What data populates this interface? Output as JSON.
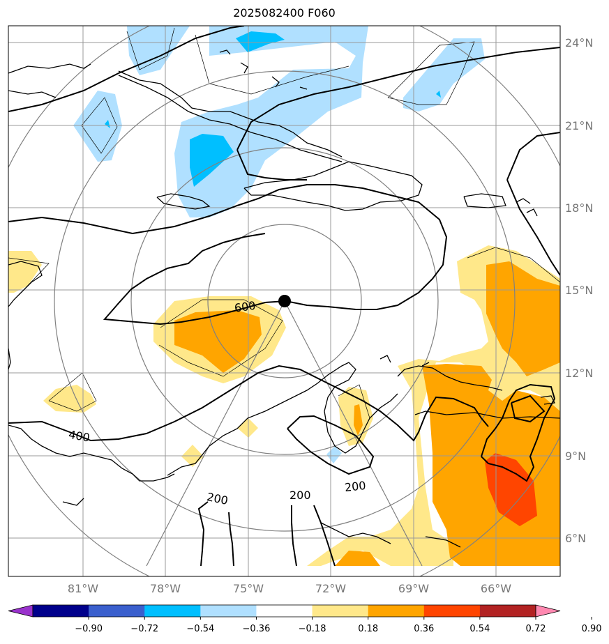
{
  "title": "2025082400 F060",
  "lat_labels": [
    "24°N",
    "21°N",
    "18°N",
    "15°N",
    "12°N",
    "9°N",
    "6°N"
  ],
  "lon_labels": [
    "81°W",
    "78°W",
    "75°W",
    "72°W",
    "69°W",
    "66°W"
  ],
  "colorbar": {
    "ticks": [
      "−0.90",
      "−0.72",
      "−0.54",
      "−0.36",
      "−0.18",
      "0.18",
      "0.36",
      "0.54",
      "0.72",
      "0.90"
    ],
    "colors": [
      "#9932cc",
      "#00008b",
      "#3a5fcd",
      "#00bfff",
      "#b0e0ff",
      "#ffffff",
      "#ffe88a",
      "#ffa500",
      "#ff4500",
      "#b22222",
      "#ff88b0"
    ]
  },
  "contour_labels": [
    "600",
    "400",
    "200",
    "200",
    "200"
  ],
  "center_marker": "storm-center"
}
